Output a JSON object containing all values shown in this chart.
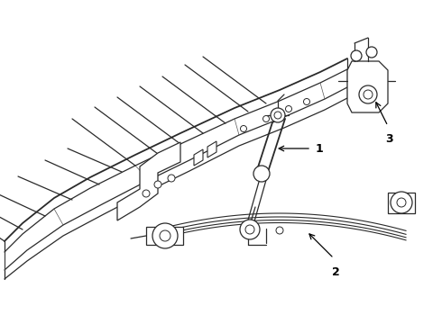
{
  "background_color": "#ffffff",
  "line_color": "#2a2a2a",
  "lw": 0.9,
  "lw_thick": 1.3,
  "label_fontsize": 8,
  "label_color": "#000000"
}
